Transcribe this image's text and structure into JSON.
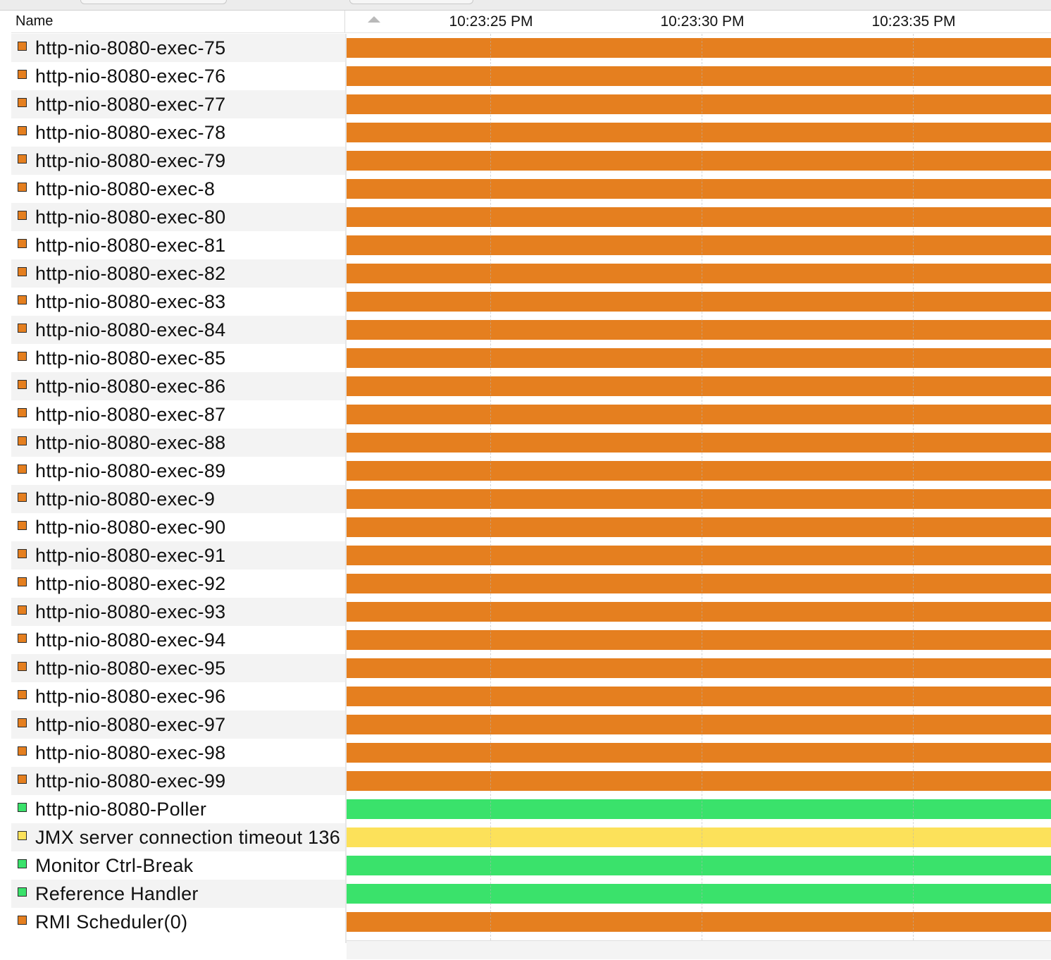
{
  "header": {
    "name_label": "Name",
    "ticks": [
      "10:23:25 PM",
      "10:23:30 PM",
      "10:23:35 PM"
    ]
  },
  "state_colors": {
    "orange": "#E57F1F",
    "green": "#3AE26B",
    "yellow": "#FCE15A"
  },
  "icon_colors": {
    "orange": "#E57F1F",
    "green": "#3AE26B",
    "yellow": "#FCE15A"
  },
  "threads": [
    {
      "name": "http-nio-8080-exec-75",
      "state": "orange"
    },
    {
      "name": "http-nio-8080-exec-76",
      "state": "orange"
    },
    {
      "name": "http-nio-8080-exec-77",
      "state": "orange"
    },
    {
      "name": "http-nio-8080-exec-78",
      "state": "orange"
    },
    {
      "name": "http-nio-8080-exec-79",
      "state": "orange"
    },
    {
      "name": "http-nio-8080-exec-8",
      "state": "orange"
    },
    {
      "name": "http-nio-8080-exec-80",
      "state": "orange"
    },
    {
      "name": "http-nio-8080-exec-81",
      "state": "orange"
    },
    {
      "name": "http-nio-8080-exec-82",
      "state": "orange"
    },
    {
      "name": "http-nio-8080-exec-83",
      "state": "orange"
    },
    {
      "name": "http-nio-8080-exec-84",
      "state": "orange"
    },
    {
      "name": "http-nio-8080-exec-85",
      "state": "orange"
    },
    {
      "name": "http-nio-8080-exec-86",
      "state": "orange"
    },
    {
      "name": "http-nio-8080-exec-87",
      "state": "orange"
    },
    {
      "name": "http-nio-8080-exec-88",
      "state": "orange"
    },
    {
      "name": "http-nio-8080-exec-89",
      "state": "orange"
    },
    {
      "name": "http-nio-8080-exec-9",
      "state": "orange"
    },
    {
      "name": "http-nio-8080-exec-90",
      "state": "orange"
    },
    {
      "name": "http-nio-8080-exec-91",
      "state": "orange"
    },
    {
      "name": "http-nio-8080-exec-92",
      "state": "orange"
    },
    {
      "name": "http-nio-8080-exec-93",
      "state": "orange"
    },
    {
      "name": "http-nio-8080-exec-94",
      "state": "orange"
    },
    {
      "name": "http-nio-8080-exec-95",
      "state": "orange"
    },
    {
      "name": "http-nio-8080-exec-96",
      "state": "orange"
    },
    {
      "name": "http-nio-8080-exec-97",
      "state": "orange"
    },
    {
      "name": "http-nio-8080-exec-98",
      "state": "orange"
    },
    {
      "name": "http-nio-8080-exec-99",
      "state": "orange"
    },
    {
      "name": "http-nio-8080-Poller",
      "state": "green"
    },
    {
      "name": "JMX server connection timeout 136",
      "state": "yellow"
    },
    {
      "name": "Monitor Ctrl-Break",
      "state": "green"
    },
    {
      "name": "Reference Handler",
      "state": "green"
    },
    {
      "name": "RMI Scheduler(0)",
      "state": "orange"
    }
  ]
}
